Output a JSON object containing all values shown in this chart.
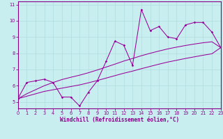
{
  "xlabel": "Windchill (Refroidissement éolien,°C)",
  "bg_color": "#c8eef0",
  "line_color": "#990099",
  "grid_color": "#b0dde0",
  "x_data": [
    0,
    1,
    2,
    3,
    4,
    5,
    6,
    7,
    8,
    9,
    10,
    11,
    12,
    13,
    14,
    15,
    16,
    17,
    18,
    19,
    20,
    21,
    22,
    23
  ],
  "y_main": [
    5.2,
    6.2,
    6.3,
    6.4,
    6.2,
    5.3,
    5.3,
    4.75,
    5.6,
    6.3,
    7.5,
    8.75,
    8.5,
    7.25,
    10.7,
    9.4,
    9.65,
    9.0,
    8.9,
    9.75,
    9.9,
    9.9,
    9.3,
    8.35
  ],
  "y_trend_upper": [
    5.2,
    5.5,
    5.75,
    6.0,
    6.2,
    6.38,
    6.52,
    6.65,
    6.8,
    6.97,
    7.15,
    7.33,
    7.52,
    7.68,
    7.85,
    8.0,
    8.14,
    8.27,
    8.38,
    8.48,
    8.57,
    8.65,
    8.71,
    8.35
  ],
  "y_trend_lower": [
    5.2,
    5.35,
    5.5,
    5.65,
    5.75,
    5.85,
    5.95,
    6.05,
    6.18,
    6.32,
    6.47,
    6.62,
    6.77,
    6.9,
    7.05,
    7.19,
    7.33,
    7.46,
    7.57,
    7.68,
    7.78,
    7.88,
    7.97,
    8.35
  ],
  "xlim": [
    0,
    23
  ],
  "ylim": [
    4.6,
    11.2
  ],
  "xticks": [
    0,
    1,
    2,
    3,
    4,
    5,
    6,
    7,
    8,
    9,
    10,
    11,
    12,
    13,
    14,
    15,
    16,
    17,
    18,
    19,
    20,
    21,
    22,
    23
  ],
  "yticks": [
    5,
    6,
    7,
    8,
    9,
    10,
    11
  ],
  "tick_fontsize": 4.8,
  "xlabel_fontsize": 5.5,
  "axis_color": "#880088",
  "spine_color": "#880088"
}
